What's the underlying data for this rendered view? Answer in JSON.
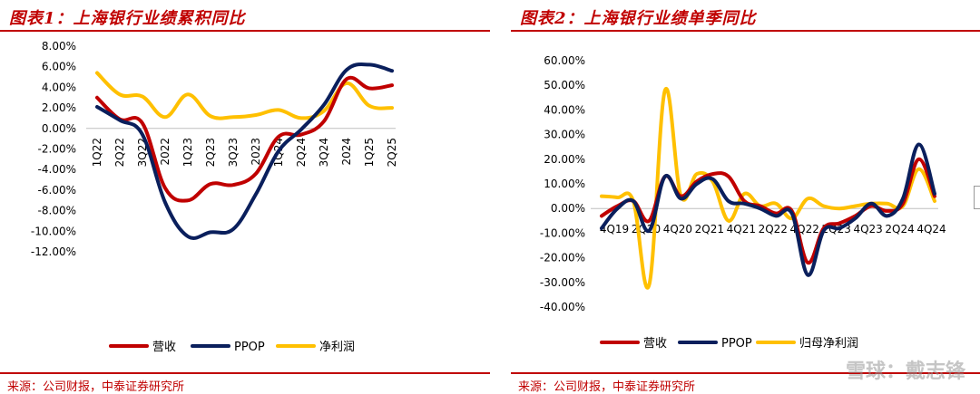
{
  "colors": {
    "accent": "#c00000",
    "s1": "#c00000",
    "s2": "#0a1f5c",
    "s3": "#ffc000"
  },
  "left": {
    "title": "图表1：上海银行业绩累积同比",
    "source": "来源：公司财报，中泰证券研究所"
  },
  "right": {
    "title": "图表2：上海银行业绩单季同比",
    "source": "来源：公司财报，中泰证券研究所"
  },
  "watermark": "雪球：戴志锋",
  "chart_data": [
    {
      "type": "line",
      "title": "图表1：上海银行业绩累积同比",
      "ylim": [
        -12,
        8
      ],
      "y_ticks": [
        "8.00%",
        "6.00%",
        "4.00%",
        "2.00%",
        "0.00%",
        "-2.00%",
        "-4.00%",
        "-6.00%",
        "-8.00%",
        "-10.00%",
        "-12.00%"
      ],
      "x_tick_labels": [
        "1Q22",
        "2Q22",
        "3Q22",
        "2022",
        "1Q23",
        "2Q23",
        "3Q23",
        "2023",
        "1Q24",
        "2Q24",
        "3Q24",
        "2024",
        "1Q25",
        "2Q25"
      ],
      "x": [
        0,
        1,
        2,
        3,
        4,
        5,
        6,
        7,
        8,
        9,
        10,
        11,
        12,
        13
      ],
      "series": [
        {
          "name": "营收",
          "color": "#c00000",
          "values": [
            3.0,
            0.9,
            0.5,
            -5.8,
            -7.0,
            -5.4,
            -5.5,
            -4.4,
            -0.8,
            -0.6,
            0.7,
            4.8,
            3.9,
            4.2
          ]
        },
        {
          "name": "PPOP",
          "color": "#0a1f5c",
          "values": [
            2.1,
            0.8,
            -0.6,
            -7.2,
            -10.5,
            -10.1,
            -9.8,
            -6.4,
            -2.2,
            -0.1,
            2.3,
            5.7,
            6.2,
            5.6
          ]
        },
        {
          "name": "净利润",
          "color": "#ffc000",
          "values": [
            5.4,
            3.3,
            3.1,
            1.1,
            3.3,
            1.2,
            1.1,
            1.3,
            1.8,
            1.0,
            1.7,
            4.4,
            2.2,
            2.0
          ]
        }
      ],
      "legend": "bottom"
    },
    {
      "type": "line",
      "title": "图表2：上海银行业绩单季同比",
      "ylim": [
        -40,
        60
      ],
      "y_ticks": [
        "60.00%",
        "50.00%",
        "40.00%",
        "30.00%",
        "20.00%",
        "10.00%",
        "0.00%",
        "-10.00%",
        "-20.00%",
        "-30.00%",
        "-40.00%"
      ],
      "x_tick_labels": [
        "4Q19",
        "2Q20",
        "4Q20",
        "2Q21",
        "4Q21",
        "2Q22",
        "4Q22",
        "2Q23",
        "4Q23",
        "2Q24",
        "4Q24"
      ],
      "x": [
        0,
        1,
        2,
        3,
        4,
        5,
        6,
        7,
        8,
        9,
        10,
        11,
        12,
        13,
        14,
        15,
        16,
        17,
        18,
        19,
        20,
        21
      ],
      "series": [
        {
          "name": "营收",
          "color": "#c00000",
          "values": [
            -3,
            1,
            3,
            -5,
            13,
            5,
            11,
            14,
            13,
            3,
            1,
            -2,
            -1,
            -22,
            -8,
            -6,
            -3,
            1,
            -1,
            2,
            20,
            5
          ]
        },
        {
          "name": "PPOP",
          "color": "#0a1f5c",
          "values": [
            -8,
            0,
            3,
            -9,
            13,
            4,
            10,
            12,
            3,
            2,
            0,
            -3,
            -2,
            -27,
            -9,
            -8,
            -4,
            2,
            -3,
            4,
            26,
            6
          ]
        },
        {
          "name": "归母净利润",
          "color": "#ffc000",
          "values": [
            5,
            4.5,
            3,
            -31,
            48,
            5,
            14,
            11,
            -5,
            6,
            1,
            2,
            -4,
            4,
            1,
            0,
            1,
            2,
            2,
            1,
            16,
            3
          ]
        }
      ],
      "legend": "bottom"
    }
  ]
}
